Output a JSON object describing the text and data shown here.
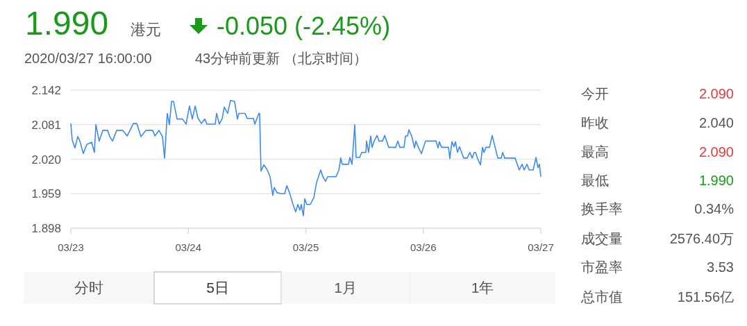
{
  "chart_data": [
    {
      "type": "line",
      "title": "1.990",
      "annotations": [
        "港元",
        "-0.050 (-2.45%)",
        "2020/03/27 16:00:00",
        "43分钟前更新 （北京时间）",
        "分时",
        "5日",
        "1月",
        "1年"
      ],
      "xlim": [
        "2020-03-23",
        "2020-03-27"
      ],
      "xticks": [
        {
          "value": "2020-03-23",
          "label": "03/23"
        },
        {
          "value": "2020-03-24",
          "label": "03/24"
        },
        {
          "value": "2020-03-25",
          "label": "03/25"
        },
        {
          "value": "2020-03-26",
          "label": "03/26"
        },
        {
          "value": "2020-03-27",
          "label": "03/27"
        }
      ],
      "ylim": [
        1.898,
        2.142
      ],
      "yticks": [
        1.898,
        1.959,
        {
          "value": 2.02,
          "label": "2.020"
        },
        2.081,
        2.142
      ],
      "grid": "y",
      "series": [
        {
          "color": "#3d8af7",
          "x": [
            "2020-03-23T00:00",
            "2020-03-23T00:17",
            "2020-03-23T00:50",
            "2020-03-23T01:25",
            "2020-03-23T01:51",
            "2020-03-23T02:33",
            "2020-03-23T03:16",
            "2020-03-23T04:15",
            "2020-03-23T04:49",
            "2020-03-23T05:07",
            "2020-03-23T05:48",
            "2020-03-23T06:32",
            "2020-03-23T07:31",
            "2020-03-23T07:57",
            "2020-03-23T08:31",
            "2020-03-23T09:22",
            "2020-03-23T10:38",
            "2020-03-23T11:30",
            "2020-03-23T12:46",
            "2020-03-23T13:28",
            "2020-03-23T14:20",
            "2020-03-23T15:19",
            "2020-03-23T16:44",
            "2020-03-23T17:10",
            "2020-03-23T18:00",
            "2020-03-23T18:43",
            "2020-03-23T19:09",
            "2020-03-23T19:42",
            "2020-03-23T20:08",
            "2020-03-23T20:34",
            "2020-03-23T20:59",
            "2020-03-23T21:42",
            "2020-03-23T22:49",
            "2020-03-23T23:33",
            "2020-03-24T00:14",
            "2020-03-24T00:49",
            "2020-03-24T01:24",
            "2020-03-24T01:57",
            "2020-03-24T02:40",
            "2020-03-24T03:22",
            "2020-03-24T03:48",
            "2020-03-24T05:30",
            "2020-03-24T05:47",
            "2020-03-24T06:20",
            "2020-03-24T06:55",
            "2020-03-24T07:21",
            "2020-03-24T08:02",
            "2020-03-24T08:37",
            "2020-03-24T09:27",
            "2020-03-24T10:02",
            "2020-03-24T10:19",
            "2020-03-24T11:36",
            "2020-03-24T12:01",
            "2020-03-24T13:18",
            "2020-03-24T13:35",
            "2020-03-24T14:25",
            "2020-03-24T14:34",
            "2020-03-24T14:51",
            "2020-03-24T15:26",
            "2020-03-24T16:08",
            "2020-03-24T16:42",
            "2020-03-24T17:15",
            "2020-03-24T17:33",
            "2020-03-24T18:07",
            "2020-03-24T18:58",
            "2020-03-24T19:41",
            "2020-03-24T20:07",
            "2020-03-24T20:40",
            "2020-03-24T21:23",
            "2020-03-24T21:56",
            "2020-03-24T22:22",
            "2020-03-24T22:48",
            "2020-03-24T23:05",
            "2020-03-24T23:30",
            "2020-03-24T23:47",
            "2020-03-25T00:13",
            "2020-03-25T00:55",
            "2020-03-25T01:38",
            "2020-03-25T02:12",
            "2020-03-25T03:03",
            "2020-03-25T03:29",
            "2020-03-25T04:02",
            "2020-03-25T04:28",
            "2020-03-25T06:10",
            "2020-03-25T06:45",
            "2020-03-25T07:09",
            "2020-03-25T07:26",
            "2020-03-25T08:43",
            "2020-03-25T09:00",
            "2020-03-25T09:26",
            "2020-03-25T10:00",
            "2020-03-25T10:16",
            "2020-03-25T10:59",
            "2020-03-25T11:25",
            "2020-03-25T12:16",
            "2020-03-25T12:24",
            "2020-03-25T12:49",
            "2020-03-25T13:15",
            "2020-03-25T13:32",
            "2020-03-25T13:58",
            "2020-03-25T14:33",
            "2020-03-25T14:57",
            "2020-03-25T15:40",
            "2020-03-25T16:06",
            "2020-03-25T16:57",
            "2020-03-25T18:22",
            "2020-03-25T18:47",
            "2020-03-25T19:13",
            "2020-03-25T20:04",
            "2020-03-25T20:21",
            "2020-03-25T20:47",
            "2020-03-25T21:03",
            "2020-03-25T21:37",
            "2020-03-25T22:12",
            "2020-03-25T22:28",
            "2020-03-25T23:02",
            "2020-03-25T23:37",
            "2020-03-26T00:27",
            "2020-03-26T02:36",
            "2020-03-26T03:01",
            "2020-03-26T03:17",
            "2020-03-26T03:43",
            "2020-03-26T05:08",
            "2020-03-26T05:25",
            "2020-03-26T05:51",
            "2020-03-26T06:16",
            "2020-03-26T06:33",
            "2020-03-26T06:59",
            "2020-03-26T07:24",
            "2020-03-26T07:49",
            "2020-03-26T08:15",
            "2020-03-26T08:57",
            "2020-03-26T09:32",
            "2020-03-26T09:58",
            "2020-03-26T10:24",
            "2020-03-26T10:41",
            "2020-03-26T11:05",
            "2020-03-26T11:40",
            "2020-03-26T12:06",
            "2020-03-26T12:23",
            "2020-03-26T12:48",
            "2020-03-26T13:31",
            "2020-03-26T14:04",
            "2020-03-26T14:38",
            "2020-03-26T15:13",
            "2020-03-26T15:55",
            "2020-03-26T16:12",
            "2020-03-26T16:38",
            "2020-03-26T18:45",
            "2020-03-26T19:11",
            "2020-03-26T19:36",
            "2020-03-26T20:10",
            "2020-03-26T20:36",
            "2020-03-26T21:10",
            "2020-03-26T21:36",
            "2020-03-26T22:26",
            "2020-03-26T23:01",
            "2020-03-26T23:25",
            "2020-03-26T23:43",
            "2020-03-27T00:00"
          ],
          "values": [
            2.083,
            2.054,
            2.04,
            2.06,
            2.052,
            2.03,
            2.046,
            2.05,
            2.032,
            2.081,
            2.052,
            2.071,
            2.071,
            2.06,
            2.052,
            2.071,
            2.071,
            2.061,
            2.083,
            2.083,
            2.06,
            2.071,
            2.071,
            2.061,
            2.071,
            2.06,
            2.022,
            2.101,
            2.081,
            2.122,
            2.122,
            2.091,
            2.091,
            2.082,
            2.114,
            2.091,
            2.114,
            2.093,
            2.083,
            2.091,
            2.082,
            2.082,
            2.101,
            2.082,
            2.092,
            2.112,
            2.101,
            2.124,
            2.122,
            2.091,
            2.101,
            2.101,
            2.092,
            2.092,
            2.082,
            2.101,
            2.101,
            1.999,
            2.01,
            2.001,
            1.989,
            1.956,
            1.97,
            1.961,
            1.959,
            1.959,
            1.973,
            1.961,
            1.94,
            1.927,
            1.94,
            1.93,
            1.94,
            1.92,
            1.95,
            1.94,
            1.94,
            1.952,
            1.979,
            2.001,
            1.989,
            1.981,
            1.989,
            1.989,
            2.001,
            2.022,
            2.011,
            2.011,
            2.023,
            2.011,
            2.081,
            2.023,
            2.023,
            2.032,
            2.032,
            2.052,
            2.032,
            2.061,
            2.041,
            2.052,
            2.062,
            2.052,
            2.052,
            2.062,
            2.041,
            2.041,
            2.052,
            2.041,
            2.041,
            2.061,
            2.061,
            2.072,
            2.061,
            2.04,
            2.052,
            2.04,
            2.03,
            2.052,
            2.052,
            2.04,
            2.051,
            2.041,
            2.041,
            2.021,
            2.051,
            2.042,
            2.051,
            2.032,
            2.042,
            2.032,
            2.022,
            2.022,
            2.032,
            2.022,
            2.032,
            2.032,
            2.021,
            2.01,
            2.041,
            2.032,
            2.041,
            2.041,
            2.062,
            2.042,
            2.022,
            2.022,
            2.032,
            2.022,
            2.022,
            2.011,
            2.001,
            2.011,
            2.001,
            2.011,
            2.001,
            2.001,
            2.023,
            2.005,
            2.011,
            1.989
          ]
        }
      ]
    },
    {
      "type": "other",
      "categories": [
        "今开",
        "昨收",
        "最高",
        "最低",
        "换手率",
        "成交量",
        "市盈率",
        "总市值"
      ],
      "value_labels": [
        "2.090",
        "2.040",
        "2.090",
        "1.990",
        "0.34%",
        "2576.40万",
        "3.53",
        "151.56亿"
      ],
      "colors": [
        "#e8383d",
        "#555555",
        "#e8383d",
        "#1a9a1a",
        "#555555",
        "#555555",
        "#555555",
        "#555555"
      ]
    }
  ]
}
